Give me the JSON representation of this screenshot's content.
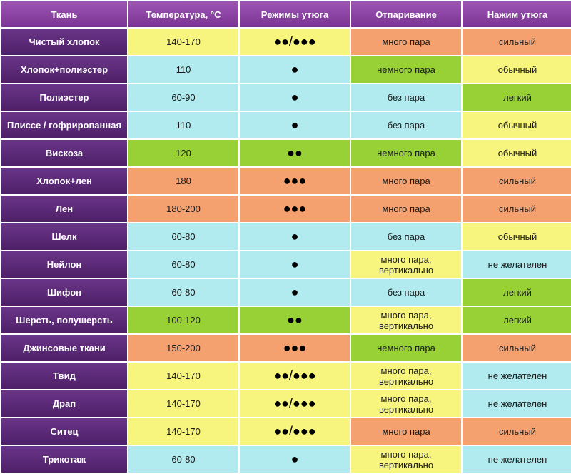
{
  "header": [
    "Ткань",
    "Температура, °С",
    "Режимы утюга",
    "Отпаривание",
    "Нажим утюга"
  ],
  "colors": {
    "yellow": "#f8f57e",
    "cyan": "#b2ebef",
    "orange": "#f4a16f",
    "green": "#97d136",
    "purple": "#5b2a78"
  },
  "rows": [
    {
      "fabric": "Чистый хлопок",
      "temp": "140-170",
      "mode": "●●/●●●",
      "steam": "много пара",
      "pressure": "сильный",
      "cells": [
        "yellow",
        "yellow",
        "orange",
        "orange"
      ]
    },
    {
      "fabric": "Хлопок+полиэстер",
      "temp": "110",
      "mode": "●",
      "steam": "немного пара",
      "pressure": "обычный",
      "cells": [
        "cyan",
        "cyan",
        "green",
        "yellow"
      ]
    },
    {
      "fabric": "Полиэстер",
      "temp": "60-90",
      "mode": "●",
      "steam": "без пара",
      "pressure": "легкий",
      "cells": [
        "cyan",
        "cyan",
        "cyan",
        "green"
      ]
    },
    {
      "fabric": "Плиссе / гофрированная",
      "temp": "110",
      "mode": "●",
      "steam": "без пара",
      "pressure": "обычный",
      "cells": [
        "cyan",
        "cyan",
        "cyan",
        "yellow"
      ]
    },
    {
      "fabric": "Вискоза",
      "temp": "120",
      "mode": "●●",
      "steam": "немного пара",
      "pressure": "обычный",
      "cells": [
        "green",
        "green",
        "green",
        "yellow"
      ]
    },
    {
      "fabric": "Хлопок+лен",
      "temp": "180",
      "mode": "●●●",
      "steam": "много пара",
      "pressure": "сильный",
      "cells": [
        "orange",
        "orange",
        "orange",
        "orange"
      ]
    },
    {
      "fabric": "Лен",
      "temp": "180-200",
      "mode": "●●●",
      "steam": "много пара",
      "pressure": "сильный",
      "cells": [
        "orange",
        "orange",
        "orange",
        "orange"
      ]
    },
    {
      "fabric": "Шелк",
      "temp": "60-80",
      "mode": "●",
      "steam": "без пара",
      "pressure": "обычный",
      "cells": [
        "cyan",
        "cyan",
        "cyan",
        "yellow"
      ]
    },
    {
      "fabric": "Нейлон",
      "temp": "60-80",
      "mode": "●",
      "steam": "много пара, вертикально",
      "pressure": "не желателен",
      "cells": [
        "cyan",
        "cyan",
        "yellow",
        "cyan"
      ]
    },
    {
      "fabric": "Шифон",
      "temp": "60-80",
      "mode": "●",
      "steam": "без пара",
      "pressure": "легкий",
      "cells": [
        "cyan",
        "cyan",
        "cyan",
        "green"
      ]
    },
    {
      "fabric": "Шерсть, полушерсть",
      "temp": "100-120",
      "mode": "●●",
      "steam": "много пара, вертикально",
      "pressure": "легкий",
      "cells": [
        "green",
        "green",
        "yellow",
        "green"
      ]
    },
    {
      "fabric": "Джинсовые ткани",
      "temp": "150-200",
      "mode": "●●●",
      "steam": "немного пара",
      "pressure": "сильный",
      "cells": [
        "orange",
        "orange",
        "green",
        "orange"
      ]
    },
    {
      "fabric": "Твид",
      "temp": "140-170",
      "mode": "●●/●●●",
      "steam": "много пара, вертикально",
      "pressure": "не желателен",
      "cells": [
        "yellow",
        "yellow",
        "yellow",
        "cyan"
      ]
    },
    {
      "fabric": "Драп",
      "temp": "140-170",
      "mode": "●●/●●●",
      "steam": "много пара, вертикально",
      "pressure": "не желателен",
      "cells": [
        "yellow",
        "yellow",
        "yellow",
        "cyan"
      ]
    },
    {
      "fabric": "Ситец",
      "temp": "140-170",
      "mode": "●●/●●●",
      "steam": "много пара",
      "pressure": "сильный",
      "cells": [
        "yellow",
        "yellow",
        "orange",
        "orange"
      ]
    },
    {
      "fabric": "Трикотаж",
      "temp": "60-80",
      "mode": "●",
      "steam": "много пара, вертикально",
      "pressure": "не желателен",
      "cells": [
        "cyan",
        "cyan",
        "yellow",
        "cyan"
      ]
    }
  ]
}
